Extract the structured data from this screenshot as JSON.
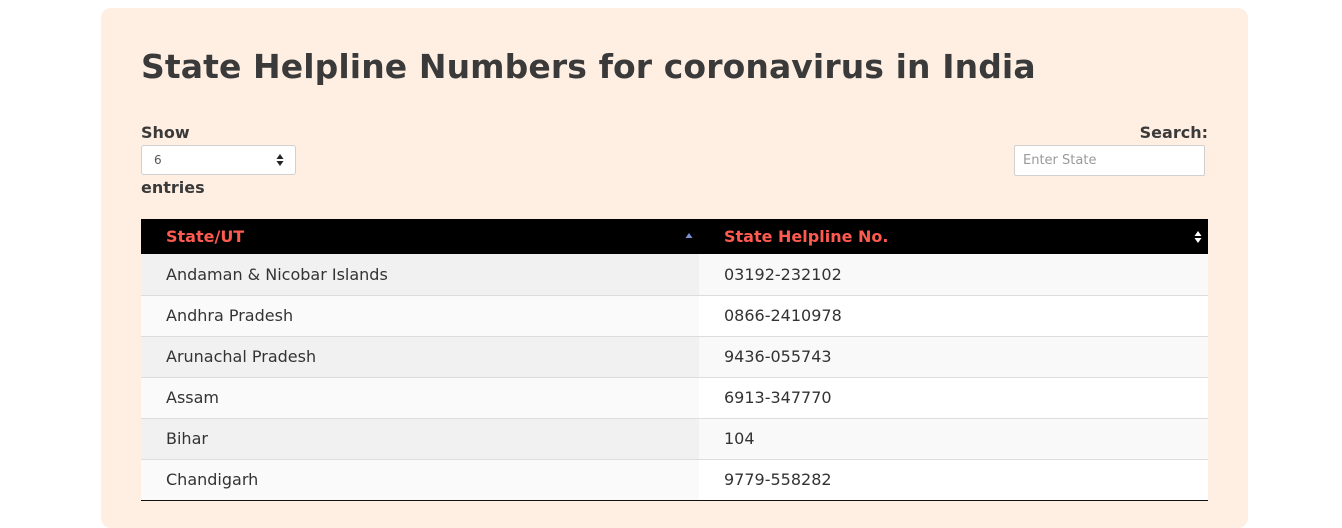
{
  "page": {
    "title": "State Helpline Numbers for coronavirus in India"
  },
  "controls": {
    "show_label": "Show",
    "entries_value": "6",
    "entries_label": "entries",
    "search_label": "Search:",
    "search_placeholder": "Enter State",
    "search_value": ""
  },
  "table": {
    "columns": [
      "State/UT",
      "State Helpline No."
    ],
    "sort": {
      "column": "State/UT",
      "direction": "ascending"
    },
    "rows": [
      {
        "state": "Andaman & Nicobar Islands",
        "helpline": "03192-232102"
      },
      {
        "state": "Andhra Pradesh",
        "helpline": "0866-2410978"
      },
      {
        "state": "Arunachal Pradesh",
        "helpline": "9436-055743"
      },
      {
        "state": "Assam",
        "helpline": "6913-347770"
      },
      {
        "state": "Bihar",
        "helpline": "104"
      },
      {
        "state": "Chandigarh",
        "helpline": "9779-558282"
      }
    ]
  },
  "colors": {
    "card_background": "#ffefe3",
    "header_background": "#000000",
    "header_text": "#ff5a50",
    "sort_active": "#7b8fd6"
  },
  "icons": {
    "select_arrows": "up-down-arrows-icon",
    "sort_ascending": "sort-ascending-icon",
    "sort_both": "sort-both-icon"
  }
}
